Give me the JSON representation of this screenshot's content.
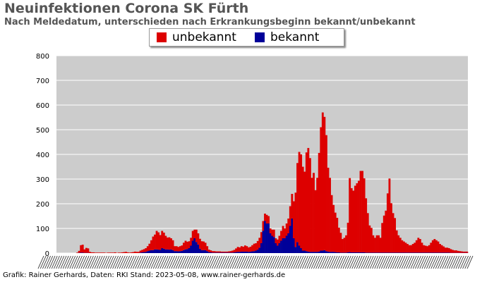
{
  "header": {
    "title": "Neuinfektionen Corona SK Fürth",
    "subtitle": "Nach Meldedatum, unterschieden nach Erkrankungsbeginn bekannt/unbekannt"
  },
  "footer": {
    "credit": "Grafik: Rainer Gerhards, Daten: RKI Stand: 2023-05-08, www.rainer-gerhards.de"
  },
  "colors": {
    "unbekannt": "#dd0000",
    "bekannt": "#000099",
    "plot_bg": "#cccccc",
    "grid": "#ffffff"
  },
  "chart_data": {
    "type": "bar",
    "stacked": true,
    "x_tick_labels": "illegible dense date labels along the x-axis",
    "ylim": [
      0,
      800
    ],
    "yticks": [
      0,
      100,
      200,
      300,
      400,
      500,
      600,
      700,
      800
    ],
    "grid": true,
    "legend_position": "top-center",
    "series": [
      {
        "name": "unbekannt",
        "color_key": "unbekannt",
        "values": [
          0,
          0,
          0,
          0,
          0,
          0,
          0,
          0,
          0,
          0,
          0,
          2,
          8,
          30,
          32,
          14,
          20,
          18,
          5,
          3,
          3,
          2,
          2,
          2,
          2,
          2,
          2,
          1,
          2,
          2,
          2,
          2,
          3,
          1,
          2,
          2,
          3,
          4,
          5,
          3,
          2,
          3,
          4,
          6,
          5,
          5,
          8,
          10,
          12,
          15,
          20,
          28,
          40,
          55,
          60,
          75,
          70,
          60,
          70,
          65,
          55,
          48,
          50,
          45,
          40,
          20,
          20,
          18,
          20,
          22,
          30,
          35,
          30,
          28,
          32,
          40,
          35,
          50,
          45,
          40,
          36,
          35,
          30,
          20,
          10,
          8,
          6,
          6,
          5,
          5,
          5,
          4,
          4,
          4,
          4,
          5,
          6,
          8,
          10,
          15,
          20,
          18,
          22,
          20,
          25,
          22,
          18,
          20,
          25,
          30,
          30,
          35,
          40,
          45,
          40,
          30,
          35,
          30,
          20,
          25,
          30,
          20,
          25,
          30,
          40,
          50,
          40,
          50,
          60,
          80,
          100,
          150,
          220,
          320,
          380,
          380,
          340,
          320,
          400,
          420,
          380,
          300,
          320,
          250,
          300,
          400,
          500,
          560,
          540,
          470,
          340,
          300,
          230,
          190,
          160,
          140,
          100,
          80,
          55,
          60,
          70,
          120,
          300,
          260,
          250,
          270,
          280,
          290,
          330,
          330,
          300,
          220,
          160,
          110,
          100,
          70,
          60,
          70,
          70,
          60,
          120,
          150,
          170,
          240,
          300,
          200,
          160,
          140,
          90,
          70,
          60,
          50,
          45,
          40,
          35,
          30,
          30,
          35,
          40,
          50,
          60,
          55,
          40,
          30,
          28,
          26,
          30,
          40,
          50,
          55,
          50,
          45,
          35,
          30,
          25,
          20,
          20,
          18,
          15,
          12,
          10,
          10,
          8,
          7,
          6,
          5,
          5,
          5
        ]
      },
      {
        "name": "bekannt",
        "color_key": "bekannt",
        "values": [
          0,
          0,
          0,
          0,
          0,
          0,
          0,
          0,
          0,
          0,
          0,
          0,
          1,
          2,
          2,
          1,
          1,
          1,
          0,
          0,
          0,
          0,
          0,
          0,
          0,
          0,
          0,
          0,
          0,
          0,
          0,
          0,
          0,
          0,
          0,
          0,
          0,
          0,
          0,
          0,
          0,
          0,
          0,
          0,
          0,
          0,
          2,
          3,
          4,
          5,
          8,
          10,
          12,
          12,
          15,
          15,
          14,
          13,
          20,
          18,
          15,
          15,
          14,
          15,
          12,
          8,
          8,
          7,
          8,
          9,
          12,
          15,
          16,
          20,
          30,
          50,
          60,
          45,
          35,
          18,
          12,
          12,
          12,
          8,
          4,
          3,
          2,
          2,
          2,
          2,
          2,
          2,
          2,
          2,
          2,
          2,
          2,
          2,
          3,
          4,
          5,
          5,
          6,
          6,
          6,
          6,
          5,
          6,
          7,
          8,
          10,
          14,
          22,
          40,
          90,
          130,
          120,
          120,
          80,
          70,
          65,
          40,
          30,
          40,
          50,
          60,
          60,
          70,
          80,
          110,
          140,
          60,
          25,
          45,
          30,
          20,
          10,
          10,
          8,
          6,
          5,
          5,
          5,
          5,
          5,
          6,
          10,
          10,
          12,
          8,
          6,
          5,
          5,
          5,
          4,
          3,
          3,
          2,
          2,
          2,
          2,
          3,
          4,
          3,
          3,
          3,
          3,
          3,
          3,
          3,
          3,
          2,
          2,
          2,
          2,
          2,
          2,
          2,
          2,
          2,
          2,
          2,
          2,
          2,
          2,
          2,
          2,
          2,
          2,
          2,
          2,
          2,
          2,
          2,
          2,
          2,
          2,
          2,
          2,
          2,
          2,
          2,
          2,
          2,
          2,
          2,
          2,
          2,
          2,
          2,
          2,
          2,
          2,
          2,
          2,
          2,
          2,
          2,
          1,
          1,
          1,
          1,
          1,
          1,
          1,
          1,
          1,
          1,
          1,
          1,
          1
        ]
      }
    ]
  }
}
